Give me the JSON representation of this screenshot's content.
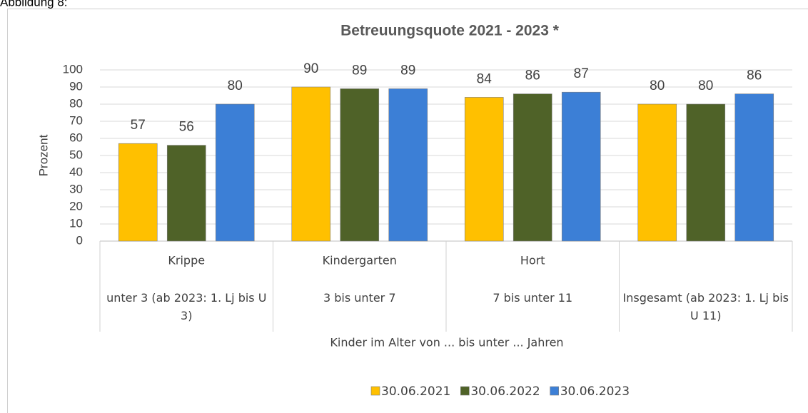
{
  "figure_label": "Abbildung 8:",
  "chart_data": {
    "type": "bar",
    "title": "Betreuungsquote 2021 - 2023 *",
    "categories": [
      "Krippe",
      "Kindergarten",
      "Hort",
      ""
    ],
    "category_descriptions": [
      "unter 3 (ab 2023: 1. Lj bis U 3)",
      "3 bis  unter 7",
      "7 bis unter 11",
      "Insgesamt (ab 2023: 1. Lj bis U 11)"
    ],
    "series": [
      {
        "name": "30.06.2021",
        "color": "#ffc000",
        "values": [
          57,
          90,
          84,
          80
        ]
      },
      {
        "name": "30.06.2022",
        "color": "#4f6228",
        "values": [
          56,
          89,
          86,
          80
        ]
      },
      {
        "name": "30.06.2023",
        "color": "#3c7fd6",
        "values": [
          80,
          89,
          87,
          86
        ]
      }
    ],
    "x_label": "Kinder im Alter von ... bis unter  ... Jahren",
    "y_label": "Prozent",
    "ylim": [
      0,
      100
    ],
    "yticks": [
      0,
      10,
      20,
      30,
      40,
      50,
      60,
      70,
      80,
      90,
      100
    ],
    "grid": true,
    "legend": "bottom"
  }
}
